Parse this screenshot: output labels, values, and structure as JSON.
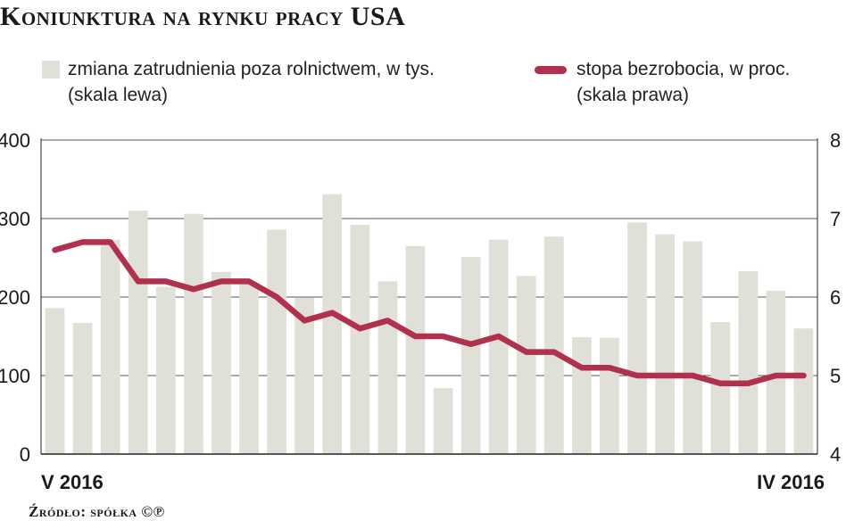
{
  "chart_data": {
    "type": "bar+line",
    "title": "Koniunktura na rynku pracy USA",
    "source": "Źródło: spółka ©℗",
    "x_start_label": "V 2016",
    "x_end_label": "IV 2016",
    "y_left": {
      "min": 0,
      "max": 400,
      "ticks": [
        "0",
        "100",
        "200",
        "300",
        "400"
      ]
    },
    "y_right": {
      "min": 4,
      "max": 8,
      "ticks": [
        "4",
        "5",
        "6",
        "7",
        "8"
      ]
    },
    "grid": true,
    "series": [
      {
        "name": "zmiana zatrudnienia poza rolnictwem, w tys.",
        "name_line2": "(skala lewa)",
        "type": "bar",
        "color": "#e0e0d8",
        "values": [
          186,
          167,
          273,
          310,
          213,
          306,
          232,
          218,
          286,
          199,
          331,
          292,
          220,
          265,
          84,
          251,
          273,
          227,
          277,
          149,
          148,
          295,
          280,
          271,
          168,
          233,
          208,
          160
        ]
      },
      {
        "name": "stopa bezrobocia, w proc.",
        "name_line2": "(skala prawa)",
        "type": "line",
        "color": "#b0304e",
        "values": [
          6.6,
          6.7,
          6.7,
          6.2,
          6.2,
          6.1,
          6.2,
          6.2,
          6.0,
          5.7,
          5.8,
          5.6,
          5.7,
          5.5,
          5.5,
          5.4,
          5.5,
          5.3,
          5.3,
          5.1,
          5.1,
          5.0,
          5.0,
          5.0,
          4.9,
          4.9,
          5.0,
          5.0
        ]
      }
    ]
  }
}
